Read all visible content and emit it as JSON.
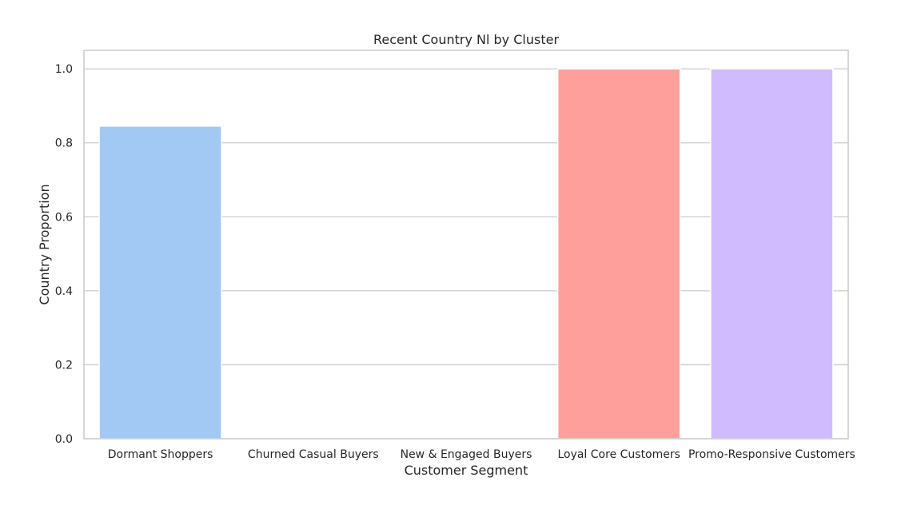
{
  "chart_data": {
    "type": "bar",
    "title": "Recent Country Nl by Cluster",
    "xlabel": "Customer Segment",
    "ylabel": "Country Proportion",
    "categories": [
      "Dormant Shoppers",
      "Churned Casual Buyers",
      "New & Engaged Buyers",
      "Loyal Core Customers",
      "Promo-Responsive Customers"
    ],
    "values": [
      0.845,
      0.0,
      0.0,
      1.0,
      1.0
    ],
    "colors": [
      "#a1c9f4",
      "#ffb482",
      "#8de5a1",
      "#ff9f9b",
      "#d0bbff"
    ],
    "yticks": [
      "0.0",
      "0.2",
      "0.4",
      "0.6",
      "0.8",
      "1.0"
    ],
    "ylim": [
      0,
      1.05
    ],
    "grid": "horizontal",
    "legend": "none"
  }
}
